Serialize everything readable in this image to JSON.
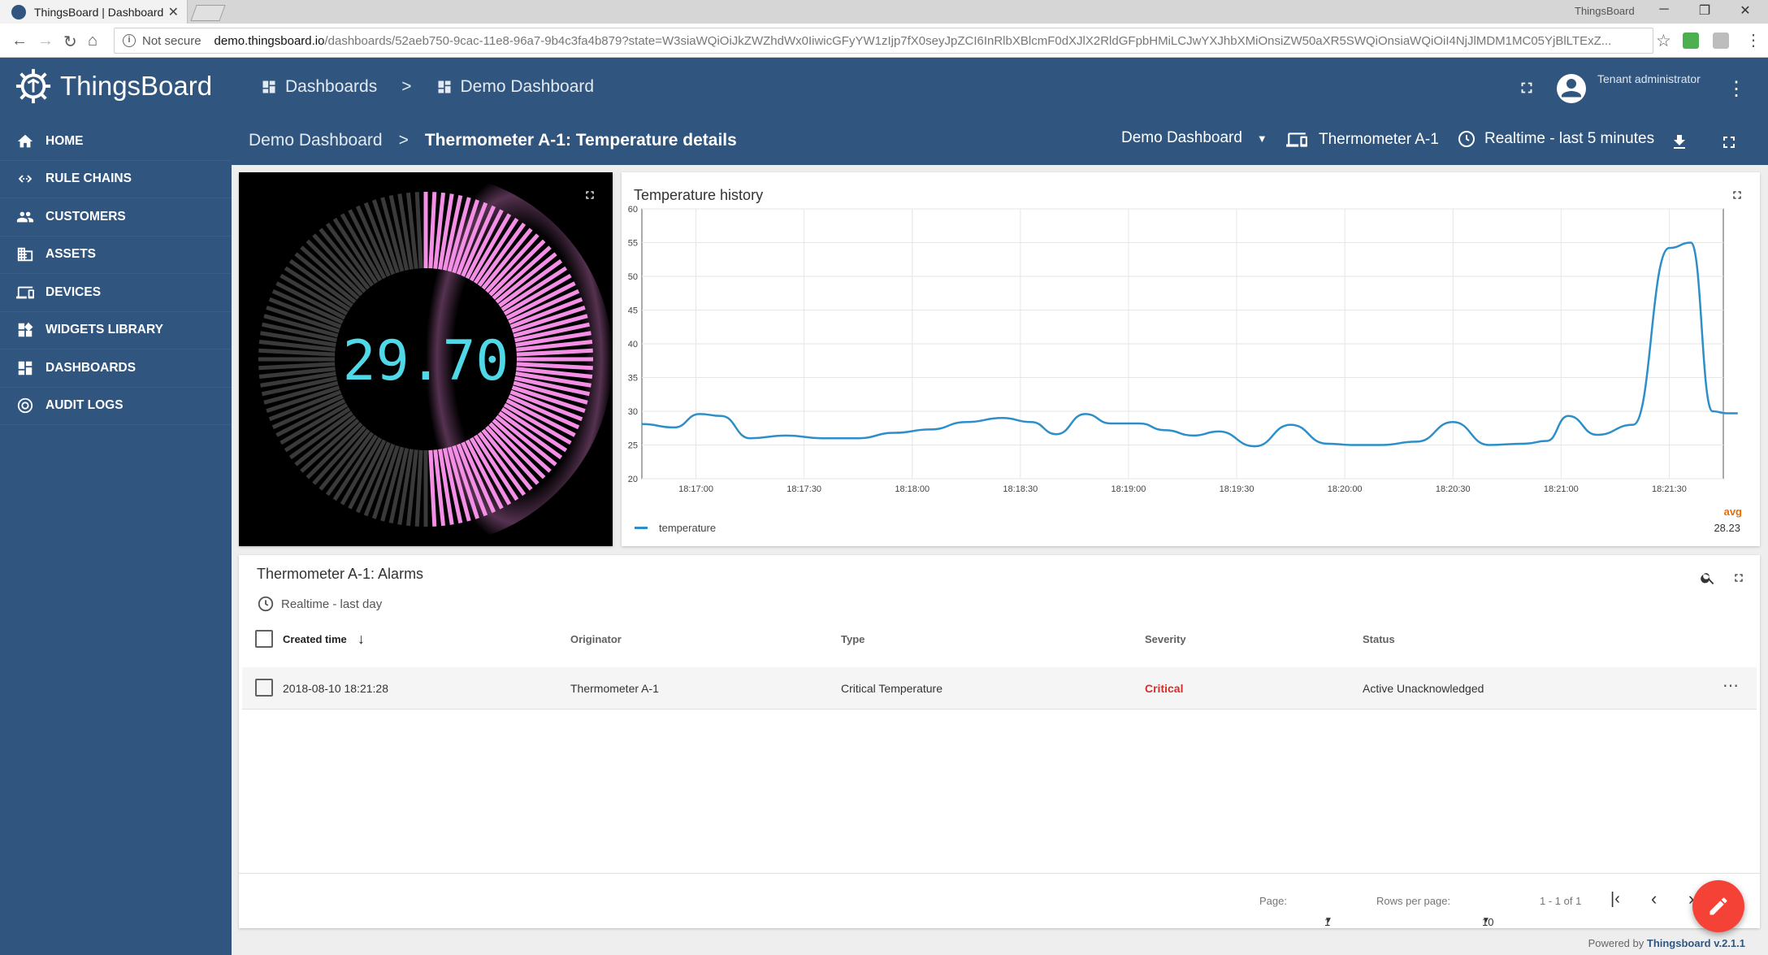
{
  "browser": {
    "tab_title": "ThingsBoard | Dashboard",
    "window_title": "ThingsBoard",
    "not_secure": "Not secure",
    "url_host": "demo.thingsboard.io",
    "url_path": "/dashboards/52aeb750-9cac-11e8-96a7-9b4c3fa4b879?state=W3siaWQiOiJkZWZhdWx0IiwicGFyYW1zIjp7fX0seyJpZCI6InRlbXBlcmF0dXJlX2RldGFpbHMiLCJwYXJhbXMiOnsiZW50aXR5SWQiOnsiaWQiOiI4NjJlMDM1MC05YjBlLTExZ..."
  },
  "app": {
    "brand": "ThingsBoard",
    "user_role": "Tenant administrator",
    "accent": "#305680"
  },
  "sidebar": {
    "items": [
      {
        "label": "HOME",
        "icon": "home-icon"
      },
      {
        "label": "RULE CHAINS",
        "icon": "rule-chains-icon"
      },
      {
        "label": "CUSTOMERS",
        "icon": "customers-icon"
      },
      {
        "label": "ASSETS",
        "icon": "assets-icon"
      },
      {
        "label": "DEVICES",
        "icon": "devices-icon"
      },
      {
        "label": "WIDGETS LIBRARY",
        "icon": "widgets-icon"
      },
      {
        "label": "DASHBOARDS",
        "icon": "dashboards-icon"
      },
      {
        "label": "AUDIT LOGS",
        "icon": "audit-logs-icon"
      }
    ]
  },
  "header": {
    "crumb_dashboards": "Dashboards",
    "crumb_sep": ">",
    "crumb_demo": "Demo Dashboard"
  },
  "subheader": {
    "dashboard": "Demo Dashboard",
    "sep": ">",
    "state": "Thermometer A-1: Temperature details",
    "state_select": "Demo Dashboard",
    "entity": "Thermometer A-1",
    "timewindow": "Realtime - last 5 minutes"
  },
  "gauge": {
    "value": "29.70",
    "level_fraction": 0.3,
    "color": "#f48fe6"
  },
  "chart_title": "Temperature history",
  "chart_data": {
    "type": "line",
    "title": "Temperature history",
    "ylim": [
      20,
      60
    ],
    "yticks": [
      "60",
      "55",
      "50",
      "45",
      "40",
      "35",
      "30",
      "25",
      "20"
    ],
    "xticks": [
      "18:17:00",
      "18:17:30",
      "18:18:00",
      "18:18:30",
      "18:19:00",
      "18:19:30",
      "18:20:00",
      "18:20:30",
      "18:21:00",
      "18:21:30"
    ],
    "x_seconds_first_tick": 1020,
    "series": [
      {
        "name": "temperature",
        "color": "#2d8fc9",
        "x": [
          1005,
          1014,
          1021,
          1027,
          1035,
          1045,
          1055,
          1065,
          1075,
          1085,
          1095,
          1105,
          1113,
          1120,
          1128,
          1135,
          1143,
          1150,
          1158,
          1165,
          1175,
          1185,
          1195,
          1202,
          1210,
          1220,
          1230,
          1240,
          1250,
          1256,
          1262,
          1270,
          1280,
          1290,
          1296,
          1302,
          1306,
          1309
        ],
        "y": [
          28.1,
          27.6,
          29.6,
          29.3,
          26.0,
          26.4,
          26.0,
          26.0,
          26.8,
          27.3,
          28.4,
          29.0,
          28.4,
          26.6,
          29.6,
          28.2,
          28.2,
          27.2,
          26.4,
          27.0,
          24.8,
          28.0,
          25.2,
          25.0,
          25.0,
          25.5,
          28.4,
          25.0,
          25.2,
          25.6,
          29.3,
          26.5,
          28.0,
          54.2,
          55.0,
          30.0,
          29.7,
          29.7
        ]
      }
    ],
    "legend": "temperature",
    "avg_label": "avg",
    "avg_value": "28.23"
  },
  "alarms": {
    "title": "Thermometer A-1: Alarms",
    "timewindow": "Realtime - last day",
    "columns": [
      "Created time",
      "Originator",
      "Type",
      "Severity",
      "Status"
    ],
    "rows": [
      {
        "created": "2018-08-10 18:21:28",
        "originator": "Thermometer A-1",
        "type": "Critical Temperature",
        "severity": "Critical",
        "status": "Active Unacknowledged"
      }
    ],
    "pager": {
      "page_label": "Page:",
      "page": "1",
      "rows_label": "Rows per page:",
      "rows": "10",
      "range": "1 - 1 of 1"
    }
  },
  "footer": {
    "powered": "Powered by",
    "brand": "Thingsboard v.2.1.1"
  },
  "colors": {
    "critical": "#d32f2f",
    "fab": "#f44336"
  }
}
